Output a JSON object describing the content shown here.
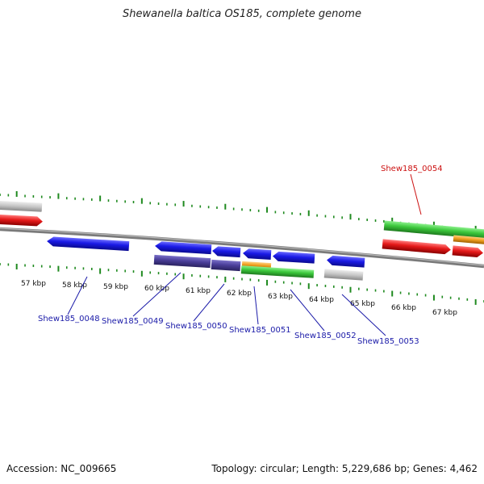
{
  "header": {
    "title": "Shewanella baltica OS185, complete genome"
  },
  "footer": {
    "accession": "Accession: NC_009665",
    "summary": "Topology: circular; Length: 5,229,686 bp; Genes: 4,462"
  },
  "colors": {
    "backbone": "#8a8a8a",
    "ticks": "#1f8a1f",
    "gene_blue": "#1a1ae6",
    "gene_purple": "#4b3f9a",
    "gene_green": "#3cc83c",
    "gene_orange": "#f0a020",
    "gene_red": "#e61a1a",
    "gene_gray": "#bdbdbd",
    "label_default": "#1a1aa8",
    "label_highlight": "#cc1111"
  },
  "kbp_labels": [
    "57 kbp",
    "58 kbp",
    "59 kbp",
    "60 kbp",
    "61 kbp",
    "62 kbp",
    "63 kbp",
    "64 kbp",
    "65 kbp",
    "66 kbp",
    "67 kbp"
  ],
  "gene_labels": [
    {
      "text": "Shew185_0048",
      "highlight": false
    },
    {
      "text": "Shew185_0049",
      "highlight": false
    },
    {
      "text": "Shew185_0050",
      "highlight": false
    },
    {
      "text": "Shew185_0051",
      "highlight": false
    },
    {
      "text": "Shew185_0052",
      "highlight": false
    },
    {
      "text": "Shew185_0053",
      "highlight": false
    },
    {
      "text": "Shew185_0054",
      "highlight": true
    }
  ]
}
